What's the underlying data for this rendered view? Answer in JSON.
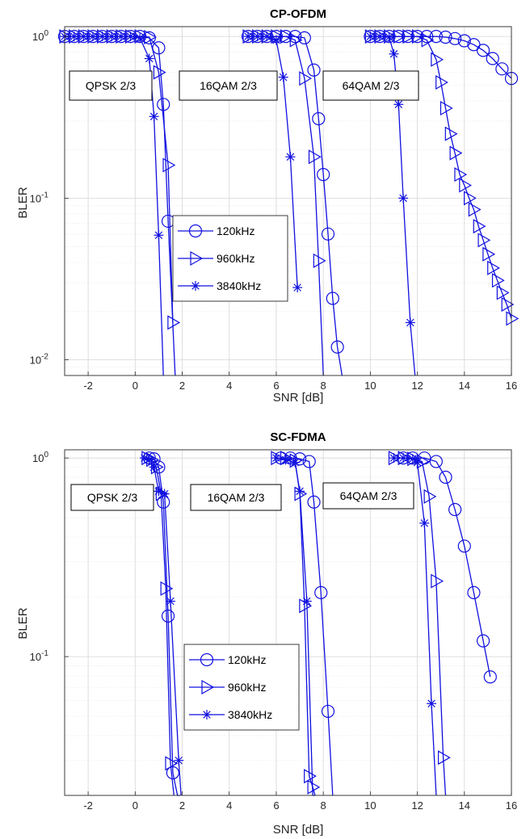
{
  "chart_data": [
    {
      "type": "line",
      "title": "CP-OFDM",
      "xlabel": "SNR [dB]",
      "ylabel": "BLER",
      "xlim": [
        -3,
        16
      ],
      "ylim": [
        0.008,
        1.15
      ],
      "yscale": "log",
      "grid": true,
      "xticks": [
        "-2",
        "0",
        "2",
        "4",
        "6",
        "8",
        "10",
        "12",
        "14",
        "16"
      ],
      "yticks": [
        {
          "value": 1,
          "base": "10",
          "exp": "0"
        },
        {
          "value": 0.1,
          "base": "10",
          "exp": "-1"
        },
        {
          "value": 0.01,
          "base": "10",
          "exp": "-2"
        }
      ],
      "color": "#1010e0",
      "legend": {
        "position": "center-left",
        "entries": [
          "120kHz",
          "960kHz",
          "3840kHz"
        ]
      },
      "annotations": [
        "QPSK 2/3",
        "16QAM 2/3",
        "64QAM 2/3"
      ],
      "series": [
        {
          "name": "120kHz",
          "marker": "circle",
          "x": [
            -3,
            -2.6,
            -2.2,
            -1.8,
            -1.4,
            -1.0,
            -0.6,
            -0.2,
            0.2,
            0.6,
            1.0,
            1.2,
            1.4,
            1.7
          ],
          "y": [
            1,
            1,
            1,
            1,
            1,
            1,
            1,
            1,
            1,
            0.98,
            0.85,
            0.38,
            0.072,
            0.008
          ]
        },
        {
          "name": "960kHz",
          "marker": "triangle",
          "x": [
            -3,
            -2.6,
            -2.2,
            -1.8,
            -1.4,
            -1.0,
            -0.6,
            -0.2,
            0.2,
            0.6,
            1.0,
            1.4,
            1.6
          ],
          "y": [
            1,
            1,
            1,
            1,
            1,
            1,
            1,
            1,
            1,
            0.99,
            0.6,
            0.16,
            0.017
          ]
        },
        {
          "name": "3840kHz",
          "marker": "star",
          "x": [
            -3,
            -2.6,
            -2.2,
            -1.8,
            -1.4,
            -1.0,
            -0.6,
            -0.2,
            0.2,
            0.6,
            0.8,
            1.0,
            1.2
          ],
          "y": [
            1,
            1,
            1,
            1,
            1,
            1,
            1,
            1,
            0.98,
            0.73,
            0.32,
            0.059,
            0.008
          ]
        },
        {
          "name": "120kHz",
          "marker": "circle",
          "x": [
            4.8,
            5.2,
            5.6,
            6.0,
            6.4,
            6.8,
            7.2,
            7.6,
            7.8,
            8.0,
            8.2,
            8.4,
            8.6,
            8.8
          ],
          "y": [
            1,
            1,
            1,
            1,
            1,
            1,
            0.98,
            0.62,
            0.31,
            0.14,
            0.06,
            0.024,
            0.012,
            0.008
          ]
        },
        {
          "name": "960kHz",
          "marker": "triangle",
          "x": [
            4.8,
            5.2,
            5.6,
            6.0,
            6.4,
            6.8,
            7.2,
            7.6,
            7.8,
            8.0
          ],
          "y": [
            1,
            1,
            1,
            1,
            1,
            0.95,
            0.55,
            0.18,
            0.041,
            0.008
          ]
        },
        {
          "name": "3840kHz",
          "marker": "star",
          "x": [
            4.8,
            5.2,
            5.6,
            6.0,
            6.3,
            6.6,
            6.9
          ],
          "y": [
            1,
            1,
            1,
            0.95,
            0.56,
            0.18,
            0.028
          ]
        },
        {
          "name": "120kHz",
          "marker": "circle",
          "x": [
            10,
            10.4,
            10.8,
            11.2,
            11.6,
            12.0,
            12.4,
            12.8,
            13.2,
            13.6,
            14.0,
            14.4,
            14.8,
            15.2,
            15.6,
            16
          ],
          "y": [
            1,
            1,
            1,
            1,
            1,
            1,
            1,
            1,
            0.99,
            0.97,
            0.94,
            0.89,
            0.82,
            0.73,
            0.63,
            0.55
          ]
        },
        {
          "name": "960kHz",
          "marker": "triangle",
          "x": [
            10,
            10.4,
            10.8,
            11.2,
            11.6,
            12.0,
            12.4,
            12.8,
            13.0,
            13.2,
            13.4,
            13.6,
            13.8,
            14.0,
            14.2,
            14.4,
            14.6,
            14.8,
            15.0,
            15.2,
            15.4,
            15.6,
            15.8,
            16
          ],
          "y": [
            1,
            1,
            1,
            1,
            1,
            1,
            0.95,
            0.72,
            0.52,
            0.36,
            0.25,
            0.19,
            0.14,
            0.12,
            0.1,
            0.085,
            0.067,
            0.055,
            0.045,
            0.037,
            0.031,
            0.026,
            0.022,
            0.018
          ]
        },
        {
          "name": "3840kHz",
          "marker": "star",
          "x": [
            10,
            10.4,
            10.8,
            11.0,
            11.2,
            11.4,
            11.7,
            11.9
          ],
          "y": [
            1,
            1,
            0.99,
            0.78,
            0.38,
            0.1,
            0.017,
            0.008
          ]
        }
      ]
    },
    {
      "type": "line",
      "title": "SC-FDMA",
      "xlabel": "SNR [dB]",
      "ylabel": "BLER",
      "xlim": [
        -3,
        16
      ],
      "ylim": [
        0.02,
        1.1
      ],
      "yscale": "log",
      "grid": true,
      "xticks": [
        "-2",
        "0",
        "2",
        "4",
        "6",
        "8",
        "10",
        "12",
        "14",
        "16"
      ],
      "yticks": [
        {
          "value": 1,
          "base": "10",
          "exp": "0"
        },
        {
          "value": 0.1,
          "base": "10",
          "exp": "-1"
        }
      ],
      "color": "#1010e0",
      "legend": {
        "position": "center-left",
        "entries": [
          "120kHz",
          "960kHz",
          "3840kHz"
        ]
      },
      "annotations": [
        "QPSK 2/3",
        "16QAM 2/3",
        "64QAM 2/3"
      ],
      "series": [
        {
          "name": "120kHz",
          "marker": "circle",
          "x": [
            0.6,
            0.8,
            1.0,
            1.2,
            1.4,
            1.6,
            1.8,
            1.9
          ],
          "y": [
            1,
            0.99,
            0.9,
            0.6,
            0.16,
            0.026,
            0.02,
            0.02
          ]
        },
        {
          "name": "960kHz",
          "marker": "triangle",
          "x": [
            0.5,
            0.7,
            0.9,
            1.1,
            1.3,
            1.5,
            1.65
          ],
          "y": [
            1,
            0.98,
            0.9,
            0.66,
            0.22,
            0.029,
            0.02
          ]
        },
        {
          "name": "3840kHz",
          "marker": "star",
          "x": [
            0.4,
            0.6,
            0.8,
            1.0,
            1.25,
            1.5,
            1.85,
            1.95
          ],
          "y": [
            1,
            0.98,
            0.9,
            0.68,
            0.66,
            0.19,
            0.03,
            0.02
          ]
        },
        {
          "name": "120kHz",
          "marker": "circle",
          "x": [
            6.2,
            6.6,
            7.0,
            7.4,
            7.6,
            7.9,
            8.2,
            8.4
          ],
          "y": [
            1,
            1,
            0.99,
            0.96,
            0.6,
            0.21,
            0.053,
            0.02
          ]
        },
        {
          "name": "960kHz",
          "marker": "triangle",
          "x": [
            6.0,
            6.4,
            6.8,
            7.0,
            7.2,
            7.4,
            7.55,
            7.65
          ],
          "y": [
            1,
            1,
            0.97,
            0.66,
            0.18,
            0.025,
            0.022,
            0.02
          ]
        },
        {
          "name": "3840kHz",
          "marker": "star",
          "x": [
            6.0,
            6.4,
            6.8,
            7.0,
            7.3,
            7.55,
            7.65
          ],
          "y": [
            1,
            0.98,
            0.95,
            0.68,
            0.19,
            0.02,
            0.02
          ]
        },
        {
          "name": "120kHz",
          "marker": "circle",
          "x": [
            11.4,
            11.8,
            12.3,
            12.8,
            13.2,
            13.6,
            14.0,
            14.4,
            14.8,
            15.1
          ],
          "y": [
            1,
            1,
            1,
            0.96,
            0.8,
            0.55,
            0.36,
            0.21,
            0.12,
            0.079
          ]
        },
        {
          "name": "960kHz",
          "marker": "triangle",
          "x": [
            11.0,
            11.4,
            11.8,
            12.2,
            12.5,
            12.8,
            13.1,
            13.2
          ],
          "y": [
            1,
            1,
            0.99,
            0.96,
            0.64,
            0.24,
            0.031,
            0.02
          ]
        },
        {
          "name": "3840kHz",
          "marker": "star",
          "x": [
            11.0,
            11.4,
            11.8,
            12.0,
            12.3,
            12.6,
            12.8
          ],
          "y": [
            1,
            1,
            0.99,
            0.95,
            0.47,
            0.058,
            0.02
          ]
        }
      ]
    }
  ]
}
